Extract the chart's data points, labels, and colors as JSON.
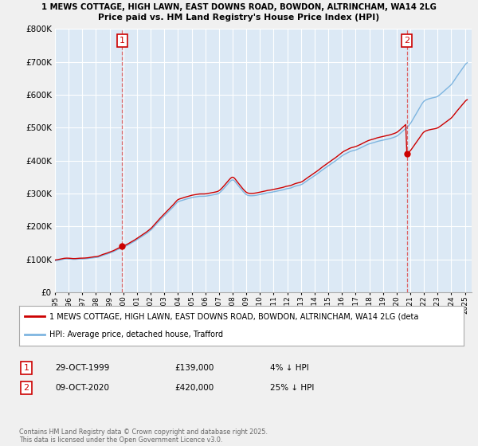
{
  "title": "1 MEWS COTTAGE, HIGH LAWN, EAST DOWNS ROAD, BOWDON, ALTRINCHAM, WA14 2LG",
  "subtitle": "Price paid vs. HM Land Registry's House Price Index (HPI)",
  "ylim": [
    0,
    800000
  ],
  "yticks": [
    0,
    100000,
    200000,
    300000,
    400000,
    500000,
    600000,
    700000,
    800000
  ],
  "ytick_labels": [
    "£0",
    "£100K",
    "£200K",
    "£300K",
    "£400K",
    "£500K",
    "£600K",
    "£700K",
    "£800K"
  ],
  "hpi_color": "#7eb5e0",
  "price_color": "#cc0000",
  "vline_color": "#dd4444",
  "background_color": "#f0f0f0",
  "plot_bg_color": "#dce9f5",
  "grid_color": "#ffffff",
  "transaction1": {
    "year_idx": 59,
    "price": 139000,
    "label": "1"
  },
  "transaction2": {
    "year_idx": 305,
    "price": 420000,
    "label": "2"
  },
  "legend_entries": [
    "1 MEWS COTTAGE, HIGH LAWN, EAST DOWNS ROAD, BOWDON, ALTRINCHAM, WA14 2LG (deta",
    "HPI: Average price, detached house, Trafford"
  ],
  "footnote": "Contains HM Land Registry data © Crown copyright and database right 2025.\nThis data is licensed under the Open Government Licence v3.0.",
  "table_rows": [
    [
      "1",
      "29-OCT-1999",
      "£139,000",
      "4% ↓ HPI"
    ],
    [
      "2",
      "09-OCT-2020",
      "£420,000",
      "25% ↓ HPI"
    ]
  ]
}
